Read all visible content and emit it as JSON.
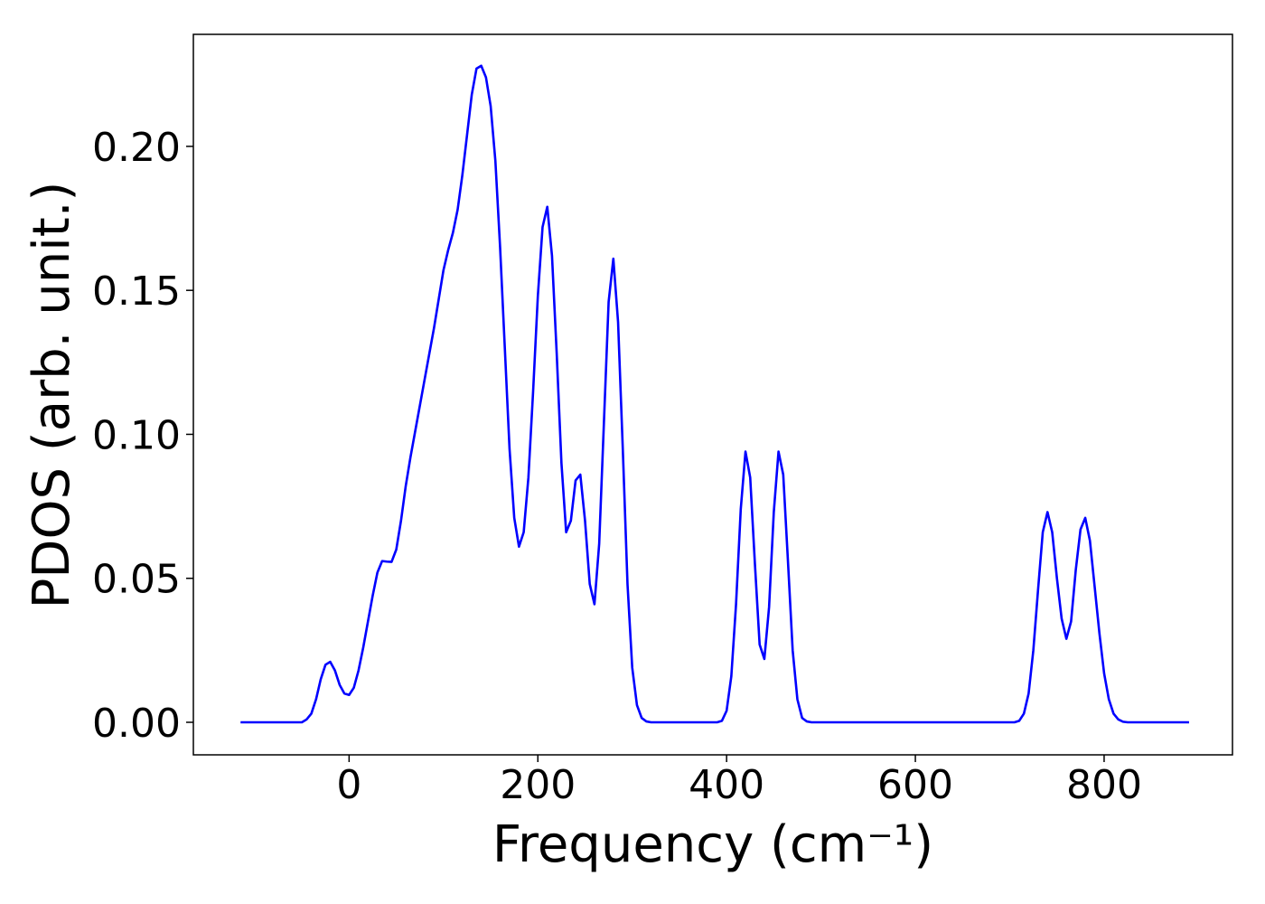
{
  "chart_data": {
    "type": "line",
    "xlabel": "Frequency (cm⁻¹)",
    "ylabel": "PDOS (arb. unit.)",
    "color": "#0000ff",
    "x": [
      -115,
      -50,
      -45,
      -40,
      -35,
      -30,
      -25,
      -20,
      -15,
      -10,
      -5,
      0,
      5,
      10,
      15,
      20,
      25,
      30,
      35,
      40,
      45,
      50,
      55,
      60,
      65,
      70,
      75,
      80,
      85,
      90,
      95,
      100,
      105,
      110,
      115,
      120,
      125,
      130,
      135,
      140,
      145,
      150,
      155,
      160,
      165,
      170,
      175,
      180,
      185,
      190,
      195,
      200,
      205,
      210,
      215,
      220,
      225,
      230,
      235,
      240,
      245,
      250,
      255,
      260,
      265,
      270,
      275,
      280,
      285,
      290,
      295,
      300,
      305,
      310,
      315,
      320,
      390,
      395,
      400,
      405,
      410,
      415,
      420,
      425,
      430,
      435,
      440,
      445,
      450,
      455,
      460,
      465,
      470,
      475,
      480,
      485,
      490,
      705,
      710,
      715,
      720,
      725,
      730,
      735,
      740,
      745,
      750,
      755,
      760,
      765,
      770,
      775,
      780,
      785,
      790,
      795,
      800,
      805,
      810,
      815,
      820,
      825,
      890
    ],
    "values": [
      0,
      0,
      0.001,
      0.003,
      0.008,
      0.015,
      0.02,
      0.021,
      0.018,
      0.013,
      0.01,
      0.0095,
      0.012,
      0.018,
      0.026,
      0.035,
      0.044,
      0.052,
      0.056,
      0.0558,
      0.0557,
      0.06,
      0.07,
      0.082,
      0.092,
      0.101,
      0.11,
      0.119,
      0.128,
      0.137,
      0.147,
      0.157,
      0.164,
      0.17,
      0.178,
      0.19,
      0.204,
      0.218,
      0.227,
      0.228,
      0.224,
      0.214,
      0.195,
      0.165,
      0.13,
      0.095,
      0.071,
      0.061,
      0.066,
      0.085,
      0.115,
      0.148,
      0.172,
      0.179,
      0.162,
      0.128,
      0.09,
      0.066,
      0.07,
      0.084,
      0.086,
      0.07,
      0.048,
      0.041,
      0.062,
      0.104,
      0.146,
      0.161,
      0.139,
      0.095,
      0.048,
      0.019,
      0.006,
      0.0015,
      0.0003,
      0,
      0,
      0.0005,
      0.004,
      0.016,
      0.041,
      0.074,
      0.094,
      0.085,
      0.055,
      0.027,
      0.022,
      0.04,
      0.073,
      0.094,
      0.086,
      0.056,
      0.025,
      0.008,
      0.0015,
      0.0003,
      0,
      0,
      0.0005,
      0.003,
      0.01,
      0.025,
      0.046,
      0.066,
      0.073,
      0.066,
      0.05,
      0.036,
      0.029,
      0.035,
      0.053,
      0.067,
      0.071,
      0.063,
      0.047,
      0.031,
      0.017,
      0.008,
      0.003,
      0.001,
      0.0002,
      0,
      0
    ],
    "xlim": [
      -165,
      936
    ],
    "ylim": [
      -0.0113,
      0.2389
    ],
    "xticks": [
      0,
      200,
      400,
      600,
      800
    ],
    "yticks": [
      {
        "value": 0,
        "label": "0.00"
      },
      {
        "value": 0.05,
        "label": "0.05"
      },
      {
        "value": 0.1,
        "label": "0.10"
      },
      {
        "value": 0.15,
        "label": "0.15"
      },
      {
        "value": 0.2,
        "label": "0.20"
      }
    ]
  }
}
